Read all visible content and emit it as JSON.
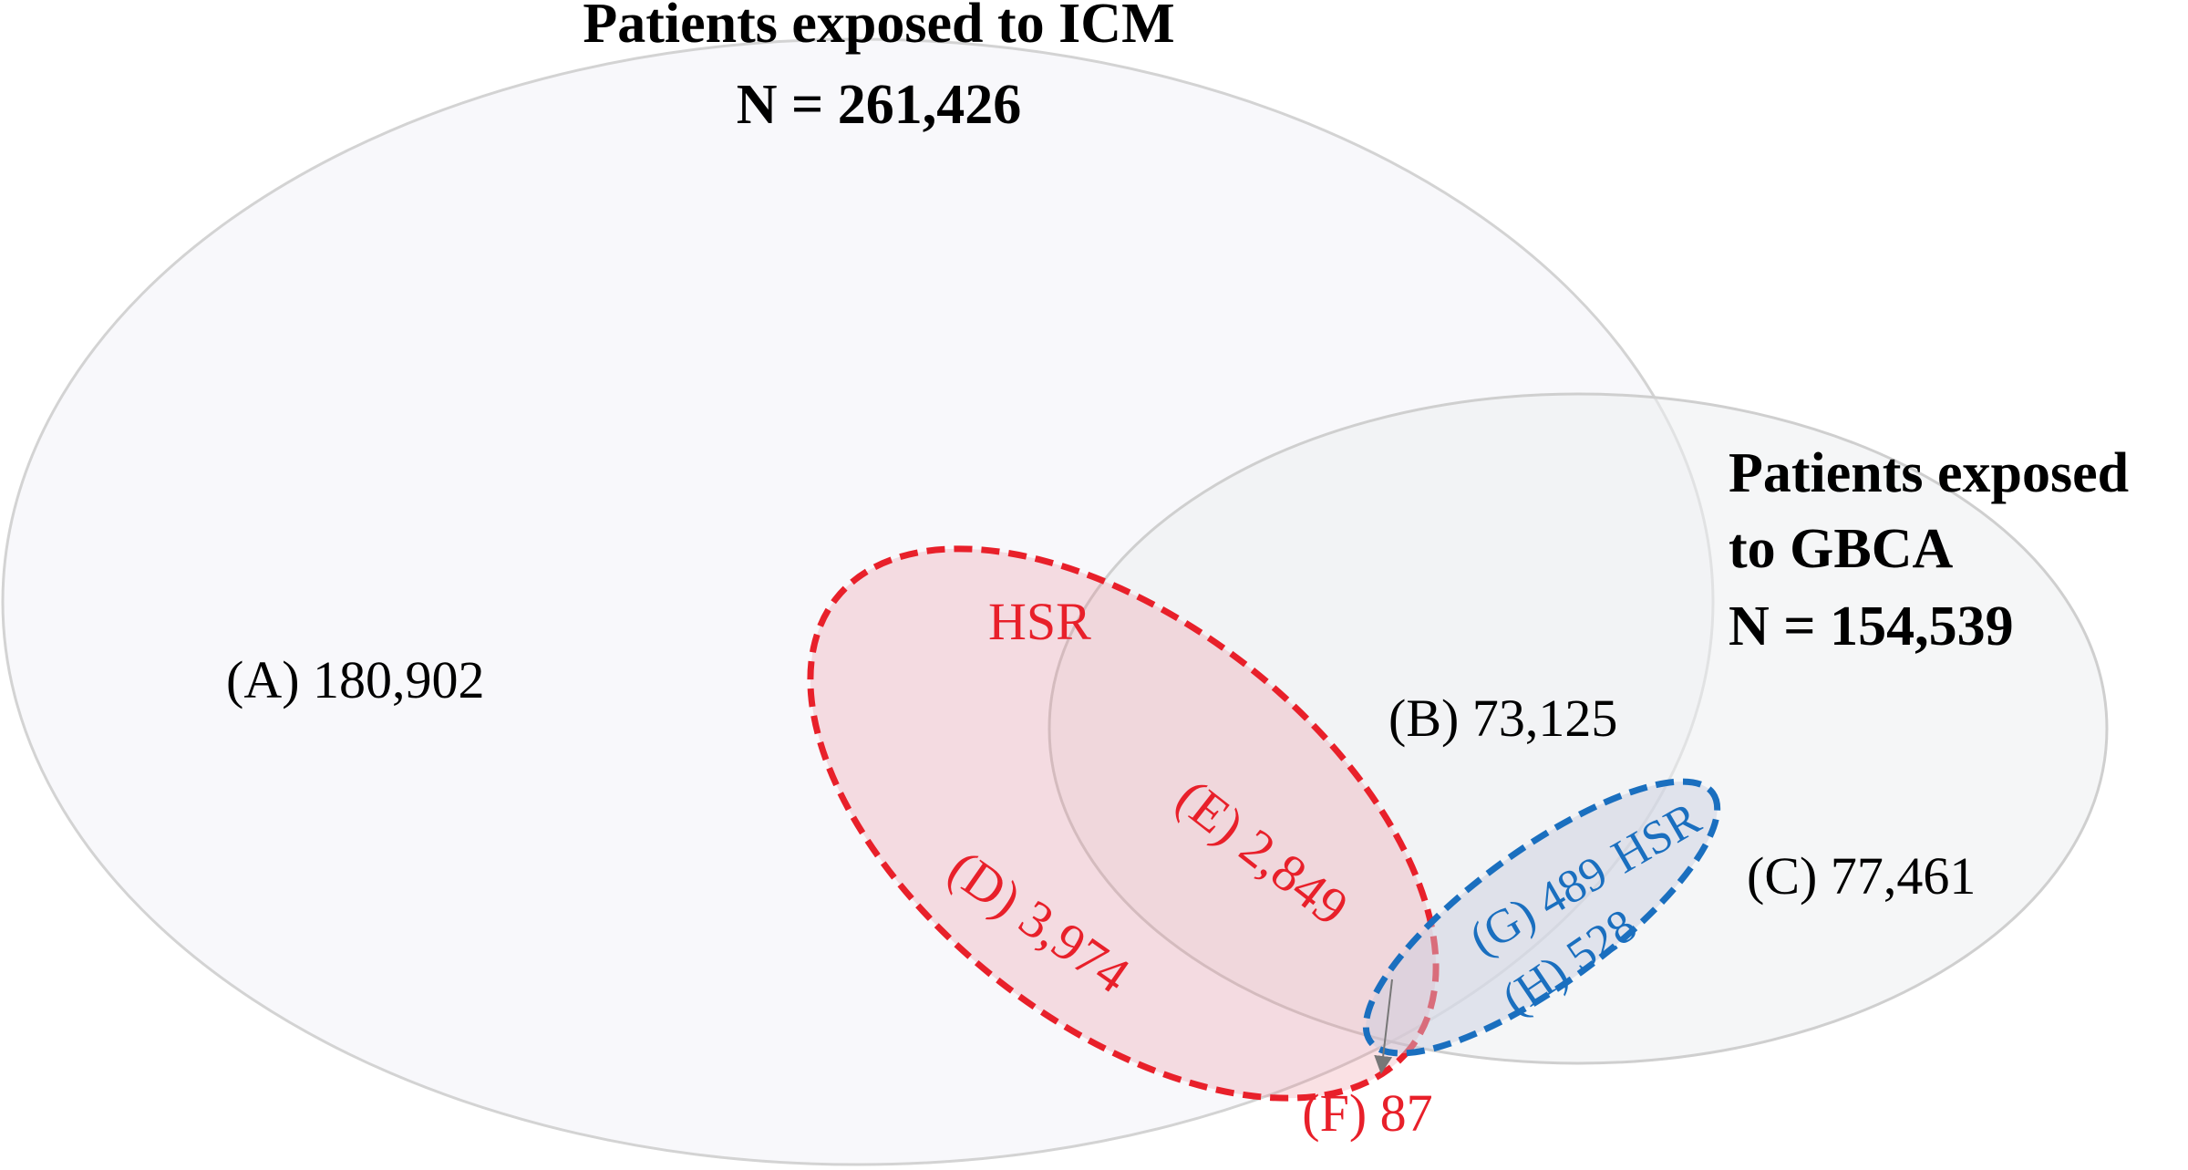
{
  "icm": {
    "title": "Patients exposed to ICM",
    "n": "N = 261,426"
  },
  "gbca": {
    "title_line1": "Patients exposed",
    "title_line2": "to GBCA",
    "n": "N = 154,539"
  },
  "regions": {
    "A": "(A) 180,902",
    "B": "(B) 73,125",
    "C": "(C) 77,461",
    "D": "(D) 3,974",
    "E": "(E) 2,849",
    "F": "(F) 87",
    "G": "(G) 489",
    "H": "(H) 528"
  },
  "hsr_icm_label": "HSR",
  "hsr_gbca_label": "HSR",
  "colors": {
    "icm_hsr": "#e8202a",
    "gbca_hsr": "#1a6fbf",
    "set_outline": "#cfcfcf",
    "text": "#000000",
    "arrow": "#777777"
  }
}
